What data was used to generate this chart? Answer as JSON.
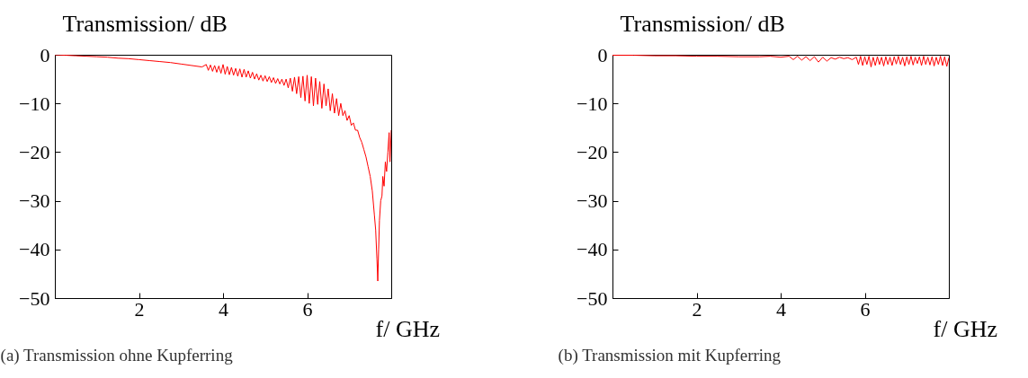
{
  "chart_data": [
    {
      "type": "line",
      "ylabel": "Transmission/ dB",
      "xlabel": "f/ GHz",
      "annotations": [
        "(a) Transmission ohne Kupferring"
      ],
      "xlim": [
        0,
        8
      ],
      "xticks": [
        2,
        4,
        6
      ],
      "ylim": [
        -50,
        0
      ],
      "yticks": [
        0,
        -10,
        -20,
        -30,
        -40,
        -50
      ],
      "grid": false,
      "series": [
        {
          "color": "#ff0000",
          "x": [
            0,
            0.25,
            0.5,
            0.75,
            1,
            1.25,
            1.5,
            1.75,
            2,
            2.25,
            2.5,
            2.75,
            3,
            3.25,
            3.5,
            3.6,
            3.65,
            3.7,
            3.75,
            3.8,
            3.85,
            3.9,
            3.95,
            4.0,
            4.05,
            4.1,
            4.15,
            4.2,
            4.25,
            4.3,
            4.35,
            4.4,
            4.45,
            4.5,
            4.55,
            4.6,
            4.65,
            4.7,
            4.75,
            4.8,
            4.85,
            4.9,
            4.95,
            5.0,
            5.05,
            5.1,
            5.15,
            5.2,
            5.25,
            5.3,
            5.35,
            5.4,
            5.45,
            5.5,
            5.55,
            5.6,
            5.65,
            5.7,
            5.75,
            5.8,
            5.85,
            5.9,
            5.95,
            6.0,
            6.05,
            6.1,
            6.15,
            6.2,
            6.25,
            6.3,
            6.35,
            6.4,
            6.45,
            6.5,
            6.55,
            6.6,
            6.65,
            6.7,
            6.75,
            6.8,
            6.85,
            6.9,
            6.95,
            7.0,
            7.05,
            7.1,
            7.15,
            7.2,
            7.25,
            7.3,
            7.35,
            7.4,
            7.45,
            7.5,
            7.55,
            7.6,
            7.63,
            7.66,
            7.68,
            7.7,
            7.72,
            7.75,
            7.78,
            7.8,
            7.83,
            7.86,
            7.89,
            7.92,
            7.95,
            7.97,
            8.0
          ],
          "values": [
            0,
            -0.1,
            -0.2,
            -0.3,
            -0.4,
            -0.5,
            -0.7,
            -0.8,
            -1.0,
            -1.2,
            -1.4,
            -1.6,
            -1.9,
            -2.2,
            -2.5,
            -2.0,
            -3.2,
            -2.1,
            -3.4,
            -2.2,
            -3.6,
            -2.3,
            -3.8,
            -2.0,
            -4.0,
            -2.4,
            -4.1,
            -2.6,
            -4.2,
            -2.8,
            -4.4,
            -2.9,
            -4.6,
            -3.0,
            -4.6,
            -3.3,
            -4.8,
            -3.6,
            -5.0,
            -3.9,
            -5.2,
            -4.2,
            -5.4,
            -4.3,
            -5.5,
            -4.5,
            -5.7,
            -4.7,
            -5.9,
            -4.9,
            -6.0,
            -5.0,
            -6.3,
            -5.0,
            -6.8,
            -4.8,
            -7.5,
            -4.6,
            -8.0,
            -4.5,
            -8.8,
            -4.4,
            -9.5,
            -4.2,
            -10.0,
            -4.5,
            -10.5,
            -4.8,
            -10.2,
            -5.5,
            -11.0,
            -6.0,
            -10.5,
            -7.0,
            -11.5,
            -8.0,
            -12.0,
            -9.0,
            -12.5,
            -10.0,
            -12.5,
            -11.5,
            -13.5,
            -12.5,
            -14.5,
            -14.0,
            -15.5,
            -15.5,
            -17.0,
            -18.0,
            -19.5,
            -21.0,
            -23.0,
            -25.0,
            -28.0,
            -33.0,
            -36.0,
            -42.0,
            -46.5,
            -40.0,
            -34.0,
            -30.0,
            -29.0,
            -25.0,
            -27.0,
            -22.0,
            -24.0,
            -20.0,
            -16.0,
            -22.0,
            -15.5
          ]
        }
      ]
    },
    {
      "type": "line",
      "ylabel": "Transmission/ dB",
      "xlabel": "f/ GHz",
      "annotations": [
        "(b) Transmission mit Kupferring"
      ],
      "xlim": [
        0,
        8
      ],
      "xticks": [
        2,
        4,
        6
      ],
      "ylim": [
        -50,
        0
      ],
      "yticks": [
        0,
        -10,
        -20,
        -30,
        -40,
        -50
      ],
      "grid": false,
      "series": [
        {
          "color": "#ff0000",
          "x": [
            0,
            0.5,
            1,
            1.5,
            2,
            2.5,
            3,
            3.5,
            3.75,
            4,
            4.2,
            4.3,
            4.4,
            4.5,
            4.6,
            4.7,
            4.8,
            4.9,
            5.0,
            5.1,
            5.2,
            5.3,
            5.4,
            5.5,
            5.6,
            5.7,
            5.8,
            5.85,
            5.9,
            5.95,
            6.0,
            6.05,
            6.1,
            6.15,
            6.2,
            6.25,
            6.3,
            6.35,
            6.4,
            6.45,
            6.5,
            6.55,
            6.6,
            6.65,
            6.7,
            6.75,
            6.8,
            6.85,
            6.9,
            6.95,
            7.0,
            7.05,
            7.1,
            7.15,
            7.2,
            7.25,
            7.3,
            7.35,
            7.4,
            7.45,
            7.5,
            7.55,
            7.6,
            7.65,
            7.7,
            7.75,
            7.8,
            7.85,
            7.9,
            7.95,
            8.0
          ],
          "values": [
            -0.1,
            -0.1,
            -0.2,
            -0.2,
            -0.3,
            -0.3,
            -0.4,
            -0.4,
            -0.3,
            -0.5,
            -0.3,
            -1.0,
            -0.3,
            -1.1,
            -0.4,
            -1.2,
            -0.4,
            -1.5,
            -0.5,
            -1.3,
            -0.6,
            -0.9,
            -0.5,
            -0.8,
            -0.6,
            -1.0,
            -0.5,
            -2.0,
            -0.3,
            -2.2,
            -0.4,
            -2.0,
            -0.3,
            -2.5,
            -0.5,
            -2.2,
            -0.4,
            -2.0,
            -0.5,
            -2.3,
            -0.4,
            -2.0,
            -0.5,
            -2.2,
            -0.4,
            -1.9,
            -0.3,
            -2.0,
            -0.5,
            -2.3,
            -0.4,
            -2.0,
            -0.3,
            -2.1,
            -0.5,
            -1.8,
            -0.4,
            -2.2,
            -0.3,
            -2.0,
            -0.5,
            -2.1,
            -0.4,
            -2.3,
            -0.5,
            -2.0,
            -0.3,
            -2.2,
            -0.4,
            -2.4,
            -0.6
          ]
        }
      ]
    }
  ]
}
